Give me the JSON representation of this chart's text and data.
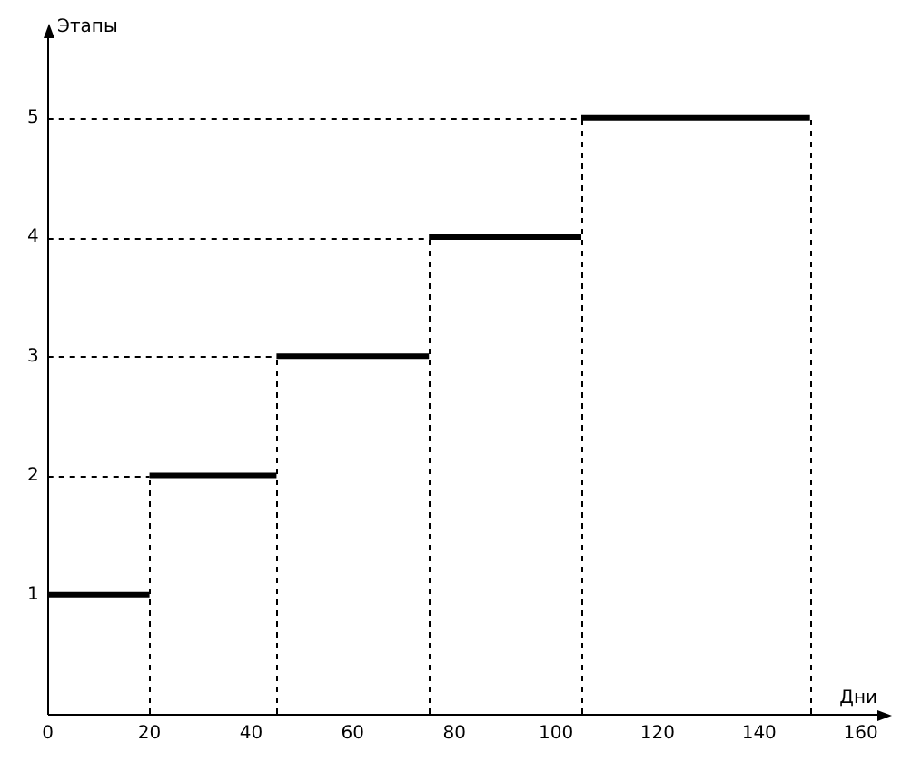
{
  "chart_data": {
    "type": "step",
    "xlabel": "Дни",
    "ylabel": "Этапы",
    "x": [
      0,
      20,
      45,
      75,
      105,
      150
    ],
    "series": [
      {
        "color": "#000000",
        "values": [
          1,
          2,
          3,
          4,
          5,
          5
        ]
      }
    ],
    "xlim": [
      0,
      164
    ],
    "ylim": [
      0,
      5.7
    ],
    "xticks": [
      0,
      20,
      40,
      60,
      80,
      100,
      120,
      140,
      160
    ],
    "yticks": [
      1,
      2,
      3,
      4,
      5
    ],
    "ref_lines": [
      {
        "axis": "x",
        "value": 20,
        "line_style": "dashed",
        "color": "#000000"
      },
      {
        "axis": "x",
        "value": 45,
        "line_style": "dashed",
        "color": "#000000"
      },
      {
        "axis": "x",
        "value": 75,
        "line_style": "dashed",
        "color": "#000000"
      },
      {
        "axis": "x",
        "value": 105,
        "line_style": "dashed",
        "color": "#000000"
      },
      {
        "axis": "x",
        "value": 150,
        "line_style": "dashed",
        "color": "#000000"
      },
      {
        "axis": "y",
        "value": 2,
        "line_style": "dashed",
        "color": "#000000"
      },
      {
        "axis": "y",
        "value": 3,
        "line_style": "dashed",
        "color": "#000000"
      },
      {
        "axis": "y",
        "value": 4,
        "line_style": "dashed",
        "color": "#000000"
      },
      {
        "axis": "y",
        "value": 5,
        "line_style": "dashed",
        "color": "#000000"
      }
    ],
    "legend": false,
    "marker": "none"
  }
}
